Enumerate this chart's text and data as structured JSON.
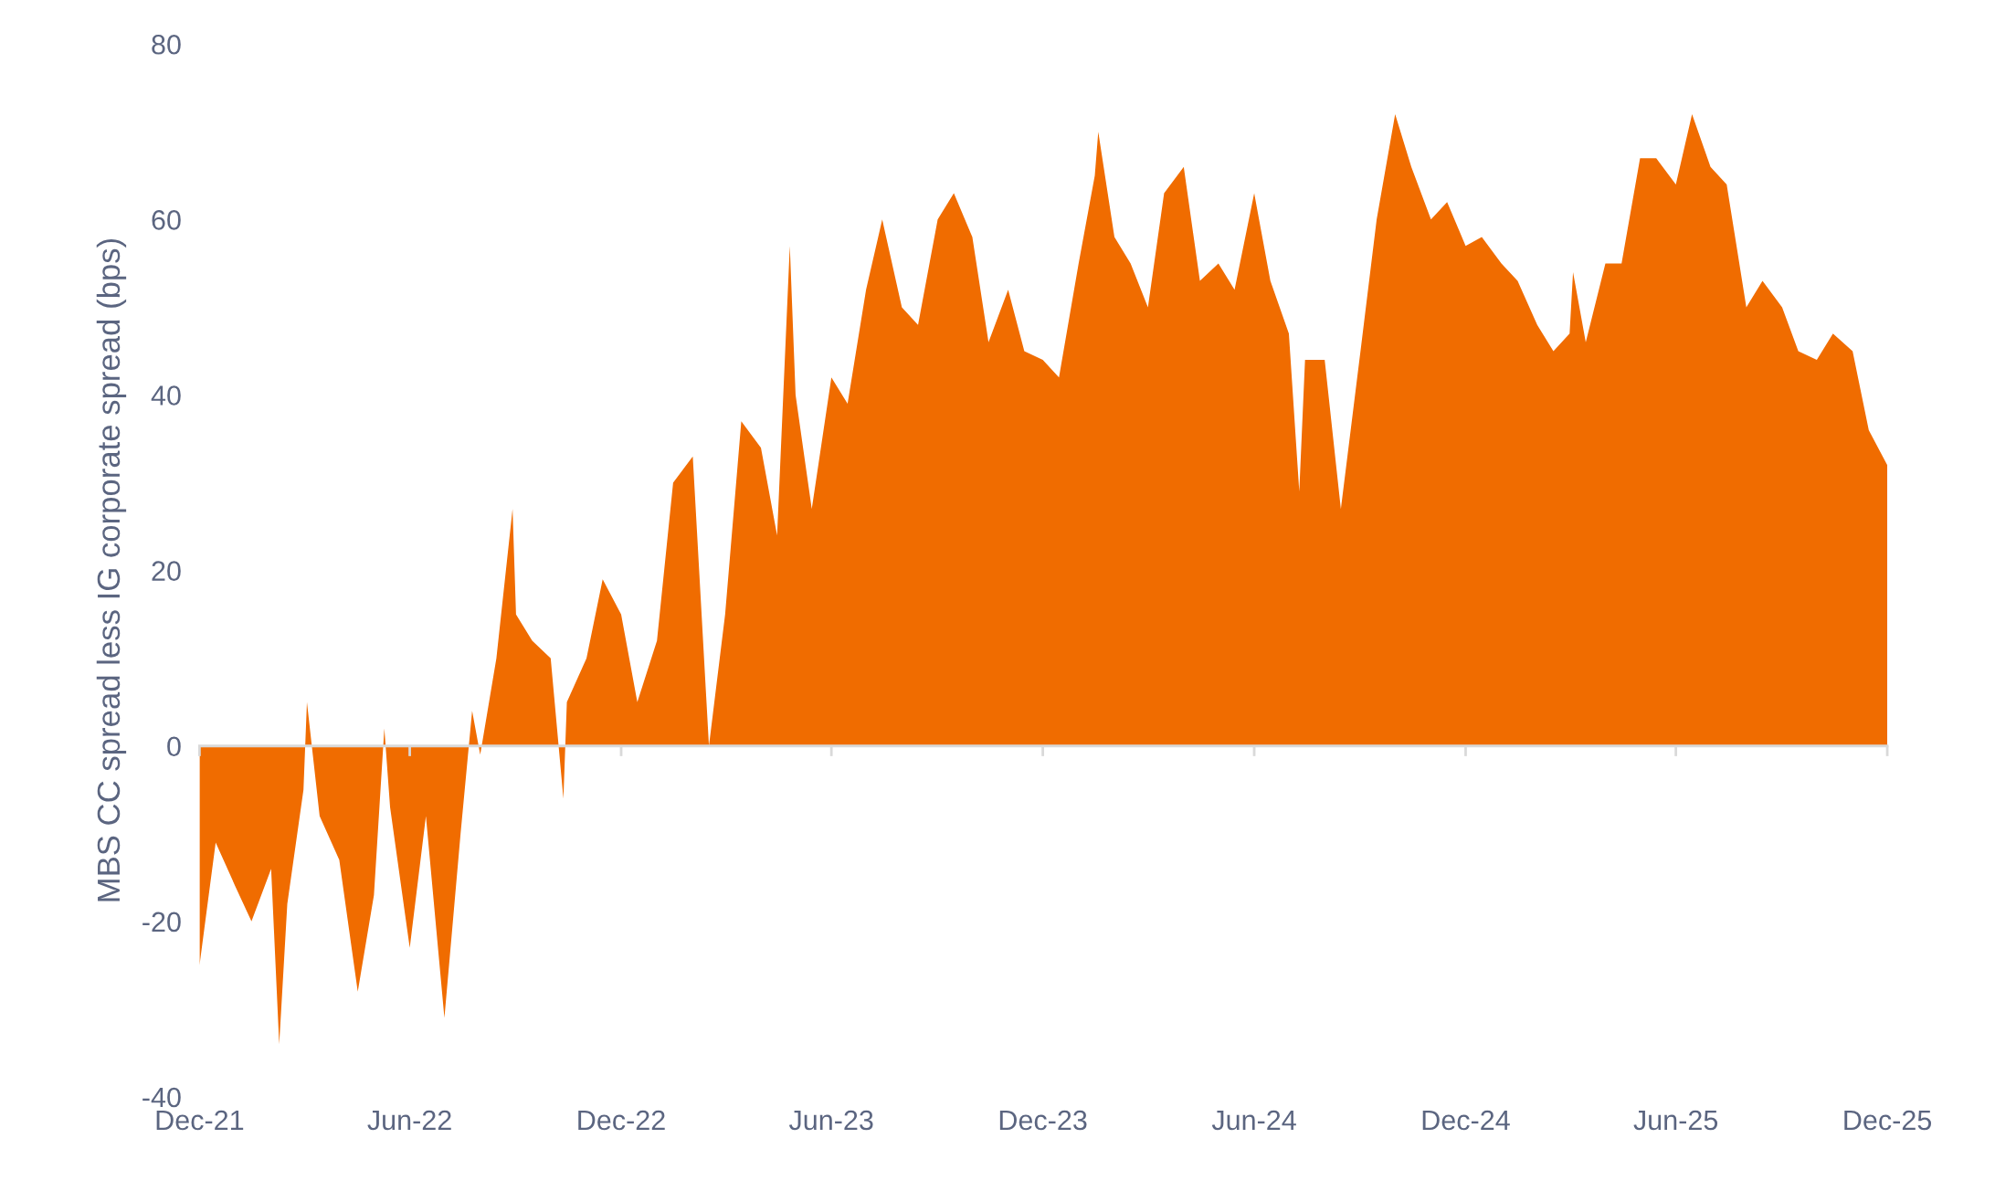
{
  "chart_data": {
    "type": "area",
    "ylabel": "MBS CC spread less IG corporate spread (bps)",
    "color": "#f06c00",
    "x": [
      "2021-12-01",
      "2021-12-15",
      "2022-01-01",
      "2022-01-15",
      "2022-02-01",
      "2022-02-08",
      "2022-02-15",
      "2022-03-01",
      "2022-03-04",
      "2022-03-15",
      "2022-04-01",
      "2022-04-17",
      "2022-05-01",
      "2022-05-10",
      "2022-05-15",
      "2022-06-01",
      "2022-06-15",
      "2022-07-01",
      "2022-07-15",
      "2022-07-25",
      "2022-08-01",
      "2022-08-15",
      "2022-08-29",
      "2022-09-01",
      "2022-09-15",
      "2022-10-01",
      "2022-10-12",
      "2022-10-15",
      "2022-11-01",
      "2022-11-15",
      "2022-12-01",
      "2022-12-15",
      "2023-01-01",
      "2023-01-15",
      "2023-02-01",
      "2023-02-15",
      "2023-03-01",
      "2023-03-15",
      "2023-04-01",
      "2023-04-15",
      "2023-04-26",
      "2023-05-01",
      "2023-05-15",
      "2023-06-01",
      "2023-06-15",
      "2023-07-01",
      "2023-07-15",
      "2023-08-01",
      "2023-08-15",
      "2023-09-01",
      "2023-09-15",
      "2023-10-01",
      "2023-10-15",
      "2023-11-01",
      "2023-11-15",
      "2023-12-01",
      "2023-12-15",
      "2024-01-01",
      "2024-01-15",
      "2024-01-18",
      "2024-02-01",
      "2024-02-15",
      "2024-03-01",
      "2024-03-15",
      "2024-04-01",
      "2024-04-15",
      "2024-05-01",
      "2024-05-15",
      "2024-06-01",
      "2024-06-15",
      "2024-07-01",
      "2024-07-10",
      "2024-07-15",
      "2024-08-01",
      "2024-08-15",
      "2024-09-01",
      "2024-09-15",
      "2024-10-01",
      "2024-10-15",
      "2024-11-01",
      "2024-11-15",
      "2024-12-01",
      "2024-12-15",
      "2025-01-01",
      "2025-01-15",
      "2025-02-01",
      "2025-02-15",
      "2025-03-01",
      "2025-03-04",
      "2025-03-15",
      "2025-04-01",
      "2025-04-15",
      "2025-05-01",
      "2025-05-15",
      "2025-06-01",
      "2025-06-15",
      "2025-07-01",
      "2025-07-15",
      "2025-08-01",
      "2025-08-15",
      "2025-09-01",
      "2025-09-15",
      "2025-10-01",
      "2025-10-15",
      "2025-11-01",
      "2025-11-15",
      "2025-12-01"
    ],
    "values": [
      -25,
      -11,
      -16,
      -20,
      -14,
      -34,
      -18,
      -5,
      5,
      -8,
      -13,
      -28,
      -17,
      2,
      -7,
      -23,
      -8,
      -31,
      -10,
      4,
      -1,
      10,
      27,
      15,
      12,
      10,
      -6,
      5,
      10,
      19,
      15,
      5,
      12,
      30,
      33,
      0,
      15,
      37,
      34,
      24,
      57,
      40,
      27,
      42,
      39,
      52,
      60,
      50,
      48,
      60,
      63,
      58,
      46,
      52,
      45,
      44,
      42,
      55,
      65,
      70,
      58,
      55,
      50,
      63,
      66,
      53,
      55,
      52,
      63,
      53,
      47,
      29,
      44,
      44,
      27,
      45,
      60,
      72,
      66,
      60,
      62,
      57,
      58,
      55,
      53,
      48,
      45,
      47,
      54,
      46,
      55,
      55,
      67,
      67,
      64,
      72,
      66,
      64,
      50,
      53,
      50,
      45,
      44,
      47,
      45,
      36,
      32
    ],
    "ylim": [
      -40,
      80
    ],
    "yticks": [
      -40,
      -20,
      0,
      20,
      40,
      60,
      80
    ],
    "xlim": [
      "2021-12-01",
      "2025-12-01"
    ],
    "xticks": [
      {
        "value": "2021-12-01",
        "label": "Dec-21"
      },
      {
        "value": "2022-06-01",
        "label": "Jun-22"
      },
      {
        "value": "2022-12-01",
        "label": "Dec-22"
      },
      {
        "value": "2023-06-01",
        "label": "Jun-23"
      },
      {
        "value": "2023-12-01",
        "label": "Dec-23"
      },
      {
        "value": "2024-06-01",
        "label": "Jun-24"
      },
      {
        "value": "2024-12-01",
        "label": "Dec-24"
      },
      {
        "value": "2025-06-01",
        "label": "Jun-25"
      },
      {
        "value": "2025-12-01",
        "label": "Dec-25"
      }
    ],
    "legend": false
  }
}
